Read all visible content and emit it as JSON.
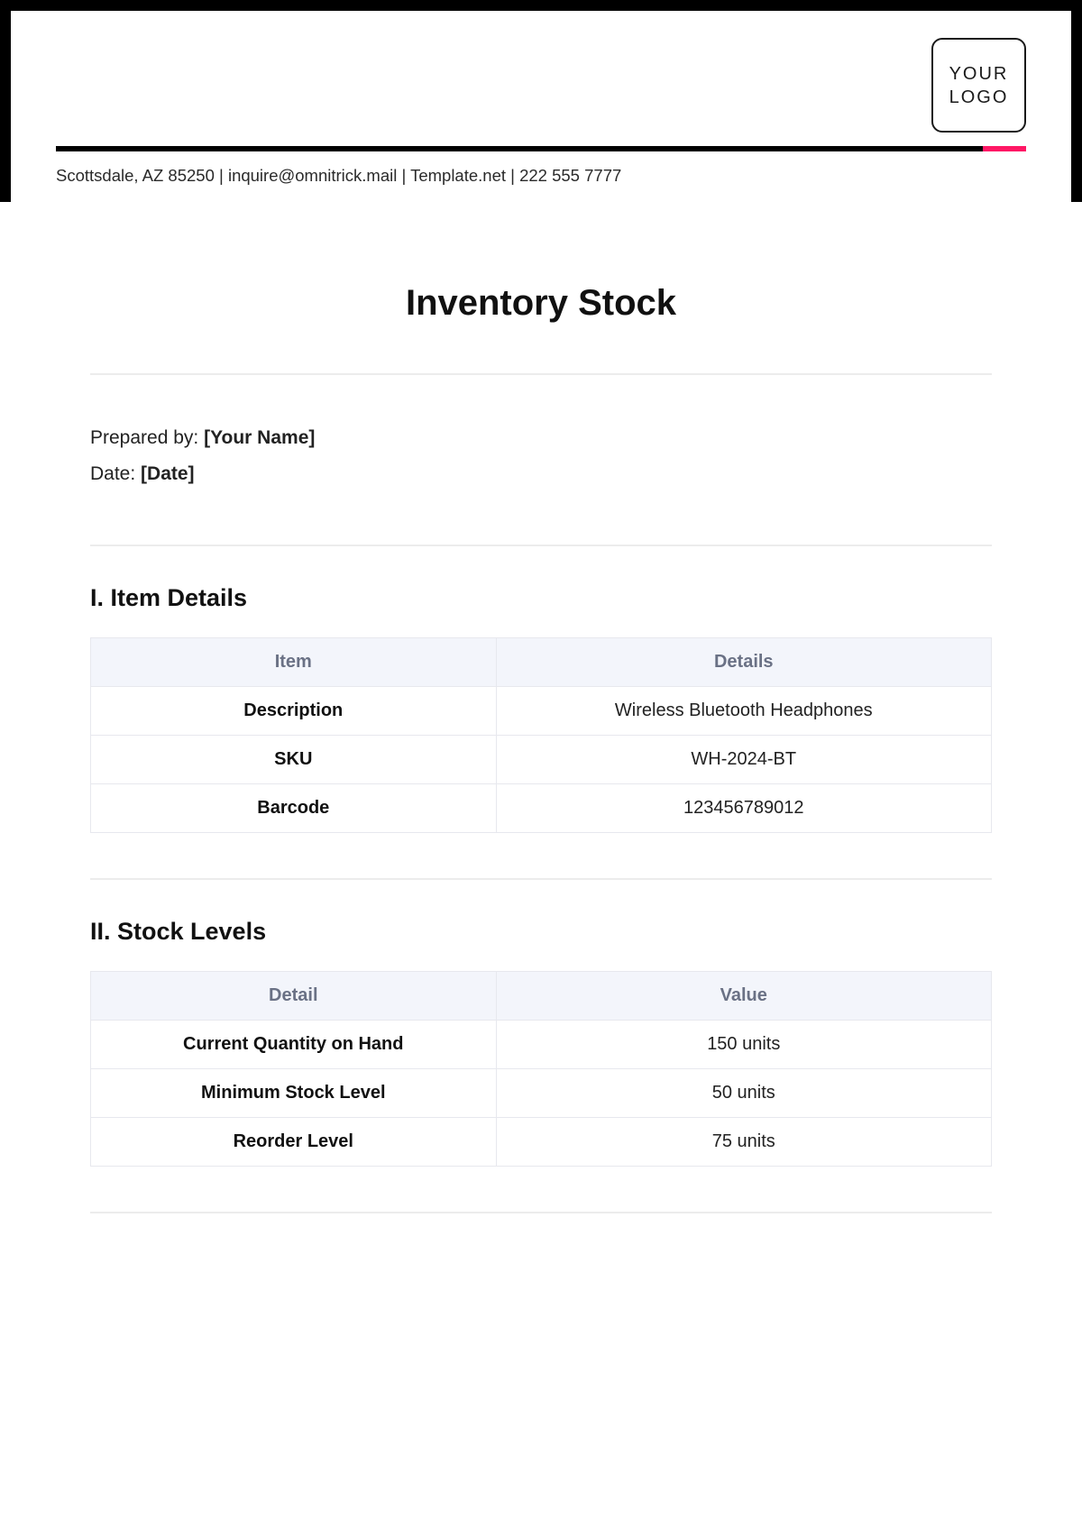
{
  "header": {
    "logo_line1": "YOUR",
    "logo_line2": "LOGO",
    "info": "Scottsdale, AZ 85250 | inquire@omnitrick.mail | Template.net | 222 555 7777",
    "accent_color": "#ff1765",
    "rule_color": "#000000",
    "frame_color": "#000000"
  },
  "document": {
    "title": "Inventory Stock",
    "prepared_by_label": "Prepared by: ",
    "prepared_by_value": "[Your Name]",
    "date_label": "Date: ",
    "date_value": "[Date]"
  },
  "section1": {
    "heading": "I. Item Details",
    "col_a": "Item",
    "col_b": "Details",
    "rows": [
      {
        "label": "Description",
        "value": "Wireless Bluetooth Headphones"
      },
      {
        "label": "SKU",
        "value": "WH-2024-BT"
      },
      {
        "label": "Barcode",
        "value": "123456789012"
      }
    ]
  },
  "section2": {
    "heading": "II. Stock Levels",
    "col_a": "Detail",
    "col_b": "Value",
    "rows": [
      {
        "label": "Current Quantity on Hand",
        "value": "150 units"
      },
      {
        "label": "Minimum Stock Level",
        "value": "50 units"
      },
      {
        "label": "Reorder Level",
        "value": "75 units"
      }
    ]
  },
  "style": {
    "title_fontsize": 40,
    "section_heading_fontsize": 27,
    "body_fontsize": 21,
    "table_fontsize": 20,
    "table_header_bg": "#f3f5fb",
    "table_header_color": "#6a7185",
    "table_border_color": "#e7e8ee",
    "hr_color": "#ececec",
    "text_color": "#1a1a1a",
    "background": "#ffffff"
  }
}
